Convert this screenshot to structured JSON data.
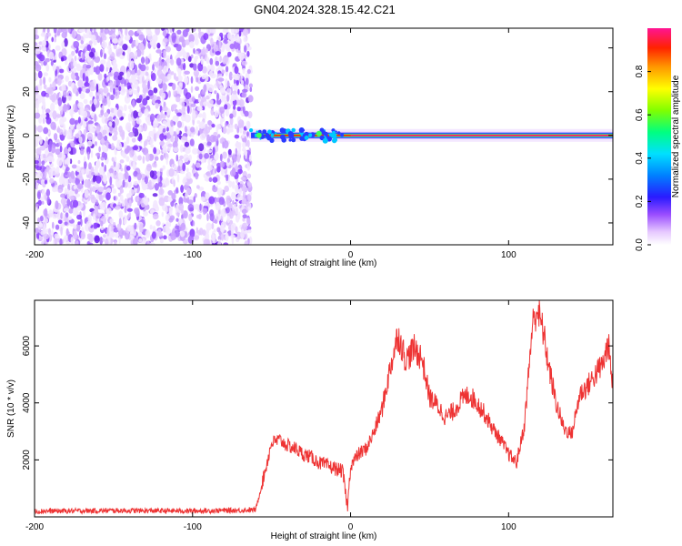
{
  "title": "GN04.2024.328.15.42.C21",
  "chart_data": [
    {
      "type": "heatmap",
      "xlabel": "Height of straight line (km)",
      "ylabel": "Frequency (Hz)",
      "xlim": [
        -200,
        166
      ],
      "ylim": [
        -50,
        49
      ],
      "xticks": [
        -200,
        -100,
        0,
        100
      ],
      "yticks": [
        -40,
        -20,
        0,
        20,
        40
      ],
      "noise_region_x": [
        -200,
        -63
      ],
      "signal_start_x": -63,
      "carrier_frequency": 0,
      "grid": false,
      "colorbar": {
        "label": "Normalized spectral amplitude",
        "range": [
          0.0,
          1.0
        ],
        "ticks": [
          "0.0",
          "0.2",
          "0.4",
          "0.6",
          "0.8"
        ]
      }
    },
    {
      "type": "line",
      "xlabel": "Height of straight line (km)",
      "ylabel": "SNR (10 * v/v)",
      "xlim": [
        -200,
        166
      ],
      "ylim": [
        0,
        7600
      ],
      "xticks": [
        -200,
        -100,
        0,
        100
      ],
      "yticks": [
        2000,
        4000,
        6000
      ],
      "series_color": "#ee3333",
      "grid": false,
      "x": [
        -200,
        -150,
        -100,
        -70,
        -60,
        -55,
        -50,
        -45,
        -40,
        -35,
        -30,
        -25,
        -20,
        -15,
        -10,
        -5,
        -2,
        0,
        5,
        10,
        15,
        20,
        25,
        30,
        35,
        40,
        45,
        50,
        55,
        60,
        65,
        70,
        75,
        80,
        85,
        90,
        95,
        100,
        105,
        110,
        115,
        118,
        122,
        125,
        130,
        135,
        140,
        145,
        150,
        155,
        160,
        163,
        166
      ],
      "values": [
        200,
        220,
        210,
        230,
        250,
        1400,
        2600,
        2700,
        2500,
        2400,
        2200,
        2100,
        1900,
        1800,
        1700,
        1600,
        300,
        1800,
        2200,
        2400,
        3000,
        3800,
        5200,
        6400,
        5500,
        5900,
        5600,
        4200,
        3900,
        3500,
        3700,
        4100,
        4300,
        4000,
        3600,
        3100,
        2700,
        2200,
        1900,
        3200,
        6700,
        7300,
        6500,
        5400,
        4000,
        3100,
        2900,
        4300,
        4600,
        5000,
        5400,
        6100,
        4500
      ]
    }
  ]
}
